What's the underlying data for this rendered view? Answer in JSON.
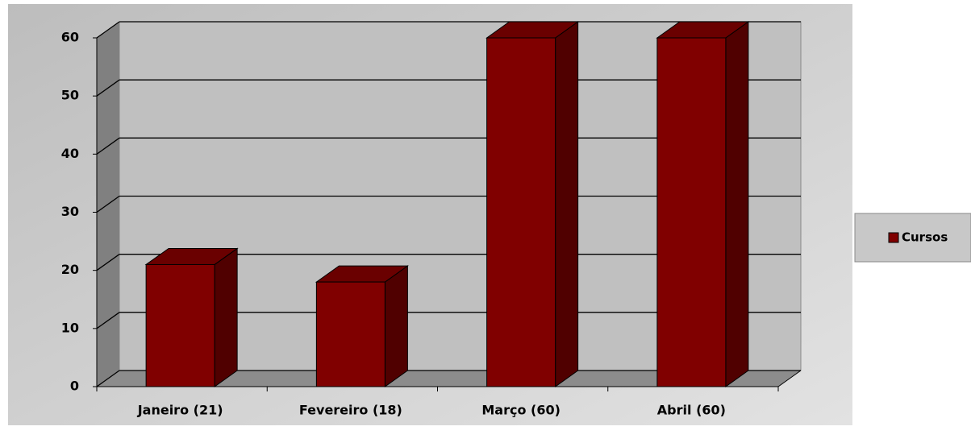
{
  "chart_data": {
    "type": "bar",
    "categories": [
      "Janeiro (21)",
      "Fevereiro (18)",
      "Março (60)",
      "Abril (60)"
    ],
    "series": [
      {
        "name": "Cursos",
        "color": "#800000",
        "values": [
          21,
          18,
          60,
          60
        ]
      }
    ],
    "ylim": [
      0,
      60
    ],
    "yticks": [
      0,
      10,
      20,
      30,
      40,
      50,
      60
    ],
    "grid": true,
    "legend": "right"
  }
}
